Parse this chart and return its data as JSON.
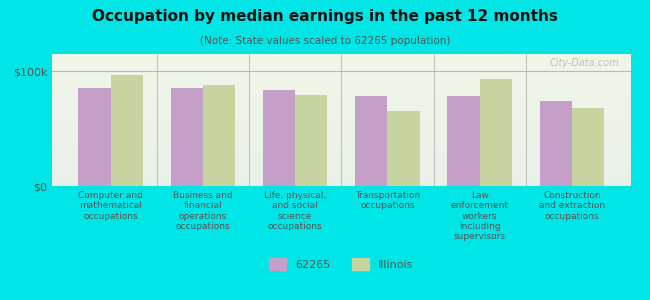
{
  "title": "Occupation by median earnings in the past 12 months",
  "subtitle": "(Note: State values scaled to 62265 population)",
  "background_color": "#00e5e5",
  "plot_bg_top": "#f0f5e8",
  "plot_bg_bottom": "#e8f0e8",
  "categories": [
    "Computer and\nmathematical\noccupations",
    "Business and\nfinancial\noperations\noccupations",
    "Life, physical,\nand social\nscience\noccupations",
    "Transportation\noccupations",
    "Law\nenforcement\nworkers\nincluding\nsupervisors",
    "Construction\nand extraction\noccupations"
  ],
  "values_62265": [
    85000,
    85000,
    84000,
    78000,
    78000,
    74000
  ],
  "values_illinois": [
    97000,
    88000,
    79000,
    65000,
    93000,
    68000
  ],
  "color_62265": "#c4a0c8",
  "color_illinois": "#c8d4a0",
  "ylabel_ticks": [
    "$0",
    "$100k"
  ],
  "ytick_vals": [
    0,
    100000
  ],
  "ymax": 115000,
  "legend_label_62265": "62265",
  "legend_label_illinois": "Illinois",
  "watermark": "City-Data.com"
}
